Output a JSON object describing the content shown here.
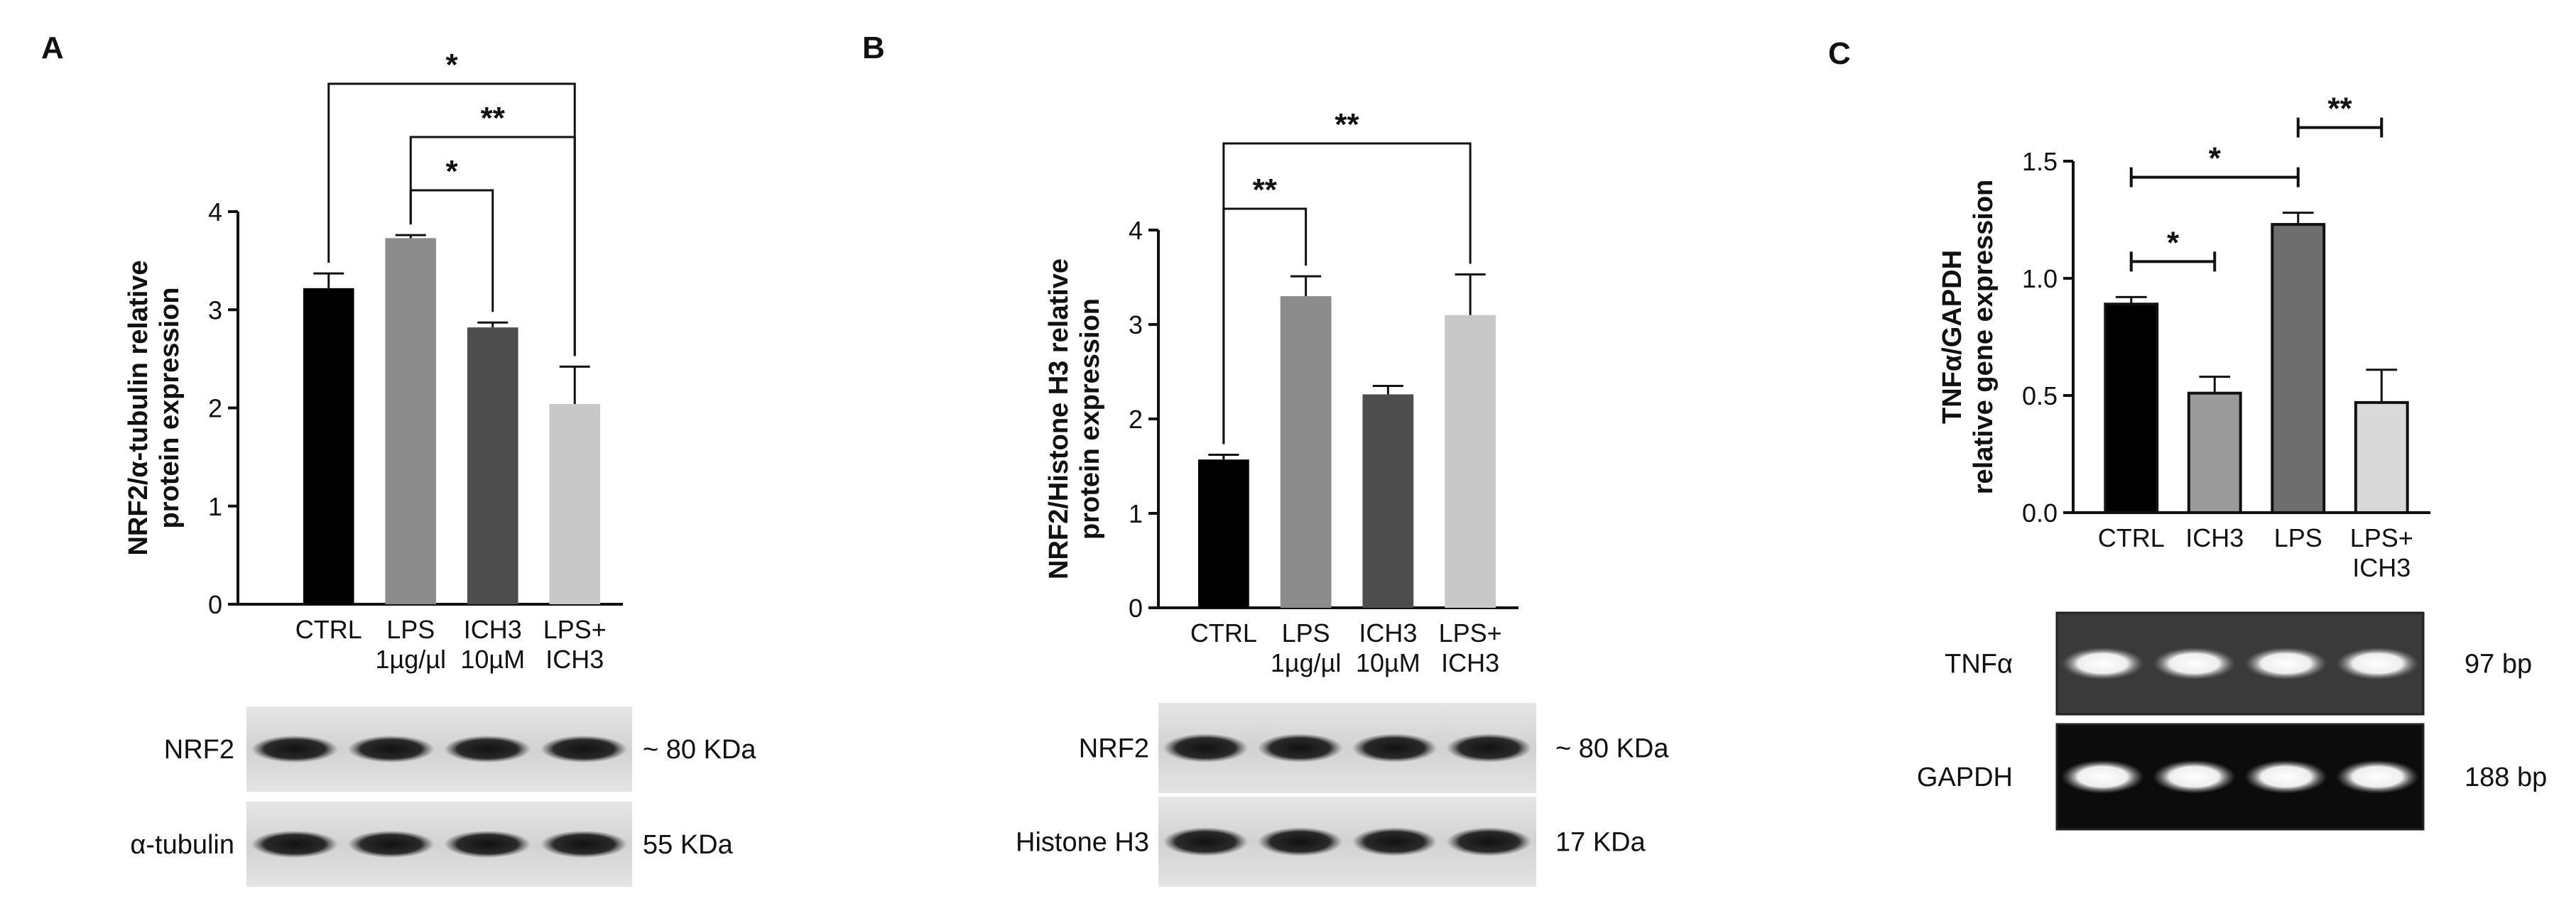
{
  "chart_data": [
    {
      "type": "bar",
      "panel": "A",
      "ylabel": "NRF2/α-tubulin relative\nprotein expression",
      "categories": [
        "CTRL",
        "LPS\n1µg/µl",
        "ICH3\n10µM",
        "LPS+\nICH3"
      ],
      "values": [
        3.22,
        3.73,
        2.82,
        2.04
      ],
      "errors": [
        0.15,
        0.03,
        0.05,
        0.38
      ],
      "colors": [
        "#000000",
        "#8c8c8c",
        "#4d4d4d",
        "#c8c8c8"
      ],
      "bar_outline": false,
      "ylim": [
        0,
        4
      ],
      "yticks": [
        0,
        1,
        2,
        3,
        4
      ],
      "bracket_style": "drop",
      "annotations": [
        {
          "text": "*",
          "groups": [
            1,
            2
          ]
        },
        {
          "text": "**",
          "groups": [
            1,
            3
          ]
        },
        {
          "text": "*",
          "groups": [
            0,
            3
          ]
        }
      ],
      "blot_style": "western",
      "blots": [
        {
          "label": "NRF2",
          "size": "~ 80 KDa"
        },
        {
          "label": "α-tubulin",
          "size": "55 KDa"
        }
      ]
    },
    {
      "type": "bar",
      "panel": "B",
      "ylabel": "NRF2/Histone H3 relative\nprotein expression",
      "categories": [
        "CTRL",
        "LPS\n1µg/µl",
        "ICH3\n10µM",
        "LPS+\nICH3"
      ],
      "values": [
        1.57,
        3.3,
        2.26,
        3.1
      ],
      "errors": [
        0.05,
        0.21,
        0.09,
        0.43
      ],
      "colors": [
        "#000000",
        "#8c8c8c",
        "#4d4d4d",
        "#c8c8c8"
      ],
      "bar_outline": false,
      "ylim": [
        0,
        4
      ],
      "yticks": [
        0,
        1,
        2,
        3,
        4
      ],
      "bracket_style": "drop",
      "annotations": [
        {
          "text": "**",
          "groups": [
            0,
            1
          ]
        },
        {
          "text": "**",
          "groups": [
            0,
            3
          ]
        }
      ],
      "blot_style": "western",
      "blots": [
        {
          "label": "NRF2",
          "size": "~ 80 KDa"
        },
        {
          "label": "Histone H3",
          "size": "17 KDa"
        }
      ]
    },
    {
      "type": "bar",
      "panel": "C",
      "ylabel": "TNFα/GAPDH\nrelative gene expression",
      "categories": [
        "CTRL",
        "ICH3",
        "LPS",
        "LPS+\nICH3"
      ],
      "values": [
        0.89,
        0.51,
        1.23,
        0.47
      ],
      "errors": [
        0.03,
        0.07,
        0.05,
        0.14
      ],
      "colors": [
        "#000000",
        "#9a9a9a",
        "#6e6e6e",
        "#d9d9d9"
      ],
      "bar_outline": true,
      "ylim": [
        0,
        1.5
      ],
      "yticks": [
        {
          "value": 0,
          "label": "0.0"
        },
        0.5,
        {
          "value": 1,
          "label": "1.0"
        },
        1.5
      ],
      "bracket_style": "cap",
      "annotations": [
        {
          "text": "*",
          "groups": [
            0,
            1
          ]
        },
        {
          "text": "*",
          "groups": [
            0,
            2
          ]
        },
        {
          "text": "**",
          "groups": [
            2,
            3
          ]
        }
      ],
      "blot_style": "gel",
      "blots": [
        {
          "label": "TNFα",
          "size": "97 bp"
        },
        {
          "label": "GAPDH",
          "size": "188 bp"
        }
      ]
    }
  ]
}
